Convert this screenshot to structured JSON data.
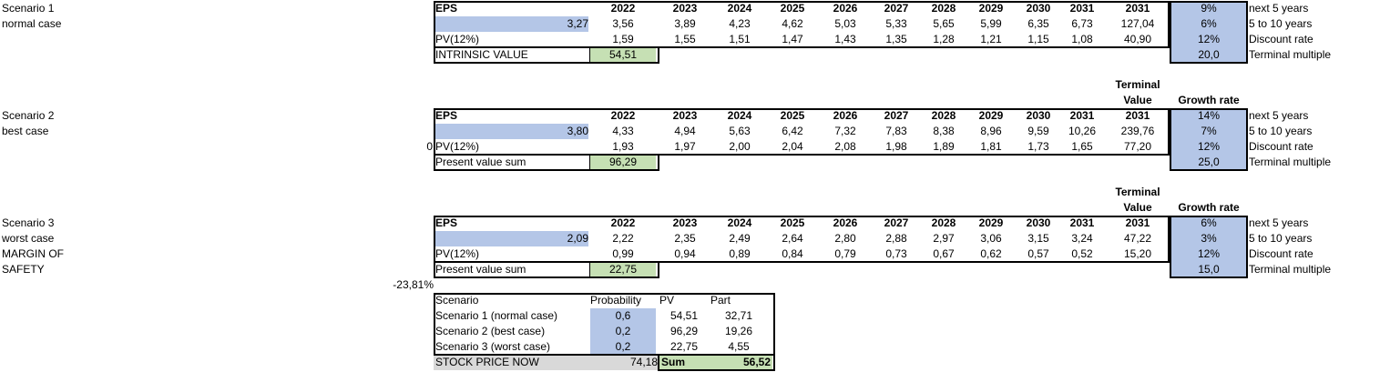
{
  "years": [
    "2022",
    "2023",
    "2024",
    "2025",
    "2026",
    "2027",
    "2028",
    "2029",
    "2030",
    "2031",
    "2031"
  ],
  "terminal_label": [
    "Terminal",
    "Value"
  ],
  "growth_rate_label": "Growth rate",
  "eps_label": "EPS",
  "pv_label": "PV(12%)",
  "param_labels": [
    "next 5 years",
    "5 to 10 years",
    "Discount rate",
    "Terminal multiple"
  ],
  "scenarios": [
    {
      "name": "Scenario 1",
      "case": "normal case",
      "eps_now": "3,27",
      "eps": [
        "3,56",
        "3,89",
        "4,23",
        "4,62",
        "5,03",
        "5,33",
        "5,65",
        "5,99",
        "6,35",
        "6,73",
        "127,04"
      ],
      "pv": [
        "1,59",
        "1,55",
        "1,51",
        "1,47",
        "1,43",
        "1,35",
        "1,28",
        "1,21",
        "1,15",
        "1,08",
        "40,90"
      ],
      "sum_label": "INTRINSIC VALUE",
      "sum_value": "54,51",
      "params": [
        "9%",
        "6%",
        "12%",
        "20,0"
      ]
    },
    {
      "name": "Scenario 2",
      "case": "best case",
      "eps_now": "3,80",
      "eps": [
        "4,33",
        "4,94",
        "5,63",
        "6,42",
        "7,32",
        "7,83",
        "8,38",
        "8,96",
        "9,59",
        "10,26",
        "239,76"
      ],
      "pv": [
        "1,93",
        "1,97",
        "2,00",
        "2,04",
        "2,08",
        "1,98",
        "1,89",
        "1,81",
        "1,73",
        "1,65",
        "77,20"
      ],
      "sum_label": "Present value sum",
      "sum_value": "96,29",
      "params": [
        "14%",
        "7%",
        "12%",
        "25,0"
      ],
      "side_value": "0"
    },
    {
      "name": "Scenario 3",
      "case": "worst case",
      "eps_now": "2,09",
      "eps": [
        "2,22",
        "2,35",
        "2,49",
        "2,64",
        "2,80",
        "2,88",
        "2,97",
        "3,06",
        "3,15",
        "3,24",
        "47,22"
      ],
      "pv": [
        "0,99",
        "0,94",
        "0,89",
        "0,84",
        "0,79",
        "0,73",
        "0,67",
        "0,62",
        "0,57",
        "0,52",
        "15,20"
      ],
      "sum_label": "Present value sum",
      "sum_value": "22,75",
      "params": [
        "6%",
        "3%",
        "12%",
        "15,0"
      ],
      "extra_labels": [
        "MARGIN OF",
        "SAFETY"
      ]
    }
  ],
  "margin_of_safety": "-23,81%",
  "summary": {
    "headers": [
      "Scenario",
      "Probability",
      "PV",
      "Part"
    ],
    "rows": [
      {
        "name": "Scenario 1 (normal case)",
        "prob": "0,6",
        "pv": "54,51",
        "part": "32,71"
      },
      {
        "name": "Scenario 2 (best case)",
        "prob": "0,2",
        "pv": "96,29",
        "part": "19,26"
      },
      {
        "name": "Scenario 3 (worst case)",
        "prob": "0,2",
        "pv": "22,75",
        "part": "4,55"
      }
    ],
    "stock_price_label": "STOCK PRICE NOW",
    "stock_price": "74,18",
    "sum_label": "Sum",
    "sum_value": "56,52"
  }
}
